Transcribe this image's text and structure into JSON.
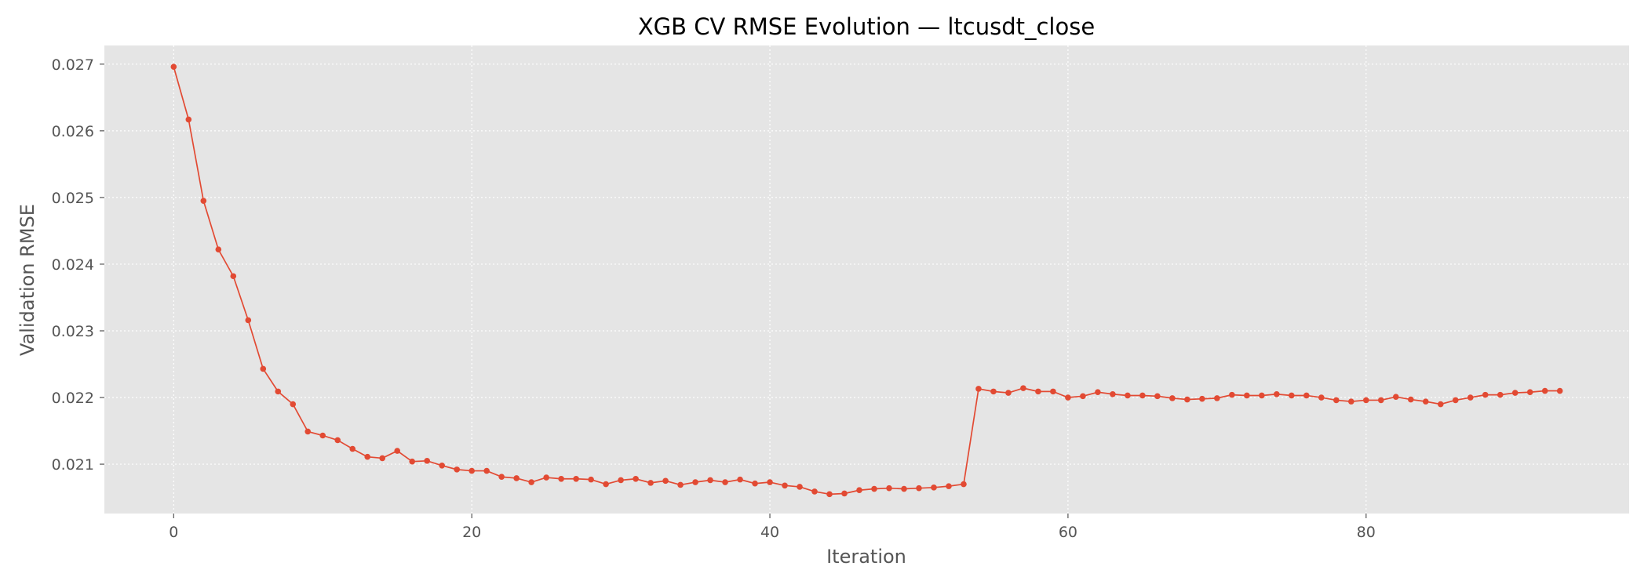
{
  "chart_data": {
    "type": "line",
    "title": "XGB CV RMSE Evolution — ltcusdt_close",
    "xlabel": "Iteration",
    "ylabel": "Validation RMSE",
    "xlim": [
      -4.65,
      97.65
    ],
    "ylim": [
      0.02026,
      0.02728
    ],
    "xticks": [
      0,
      20,
      40,
      60,
      80
    ],
    "yticks": [
      0.021,
      0.022,
      0.023,
      0.024,
      0.025,
      0.026,
      0.027
    ],
    "grid": true,
    "style": "ggplot",
    "line_color": "#E24A33",
    "background_color": "#E5E5E5",
    "series": [
      {
        "x": [
          0,
          1,
          2,
          3,
          4,
          5,
          6,
          7,
          8,
          9,
          10,
          11,
          12,
          13,
          14,
          15,
          16,
          17,
          18,
          19,
          20,
          21,
          22,
          23,
          24,
          25,
          26,
          27,
          28,
          29,
          30,
          31,
          32,
          33,
          34,
          35,
          36,
          37,
          38,
          39,
          40,
          41,
          42,
          43,
          44,
          45,
          46,
          47,
          48,
          49,
          50,
          51,
          52,
          53,
          54,
          55,
          56,
          57,
          58,
          59,
          60,
          61,
          62,
          63,
          64,
          65,
          66,
          67,
          68,
          69,
          70,
          71,
          72,
          73,
          74,
          75,
          76,
          77,
          78,
          79,
          80,
          81,
          82,
          83,
          84,
          85,
          86,
          87,
          88,
          89,
          90,
          91,
          92,
          93
        ],
        "values": [
          0.02696,
          0.02617,
          0.02495,
          0.02422,
          0.02382,
          0.02316,
          0.02243,
          0.02209,
          0.0219,
          0.02149,
          0.02143,
          0.02136,
          0.02123,
          0.02111,
          0.02109,
          0.0212,
          0.02104,
          0.02105,
          0.02098,
          0.02092,
          0.0209,
          0.0209,
          0.02081,
          0.02079,
          0.02073,
          0.0208,
          0.02078,
          0.02078,
          0.02077,
          0.0207,
          0.02076,
          0.02078,
          0.02072,
          0.02075,
          0.02069,
          0.02073,
          0.02076,
          0.02073,
          0.02077,
          0.02071,
          0.02073,
          0.02068,
          0.02066,
          0.02059,
          0.02055,
          0.02056,
          0.02061,
          0.02063,
          0.02064,
          0.02063,
          0.02064,
          0.02065,
          0.02067,
          0.0207,
          0.02213,
          0.02209,
          0.02207,
          0.02214,
          0.02209,
          0.02209,
          0.022,
          0.02202,
          0.02208,
          0.02205,
          0.02203,
          0.02203,
          0.02202,
          0.02199,
          0.02197,
          0.02198,
          0.02199,
          0.02204,
          0.02203,
          0.02203,
          0.02205,
          0.02203,
          0.02203,
          0.022,
          0.02196,
          0.02194,
          0.02196,
          0.02196,
          0.02201,
          0.02197,
          0.02194,
          0.0219,
          0.02196,
          0.022,
          0.02204,
          0.02204,
          0.02207,
          0.02208,
          0.0221,
          0.0221
        ]
      }
    ]
  }
}
